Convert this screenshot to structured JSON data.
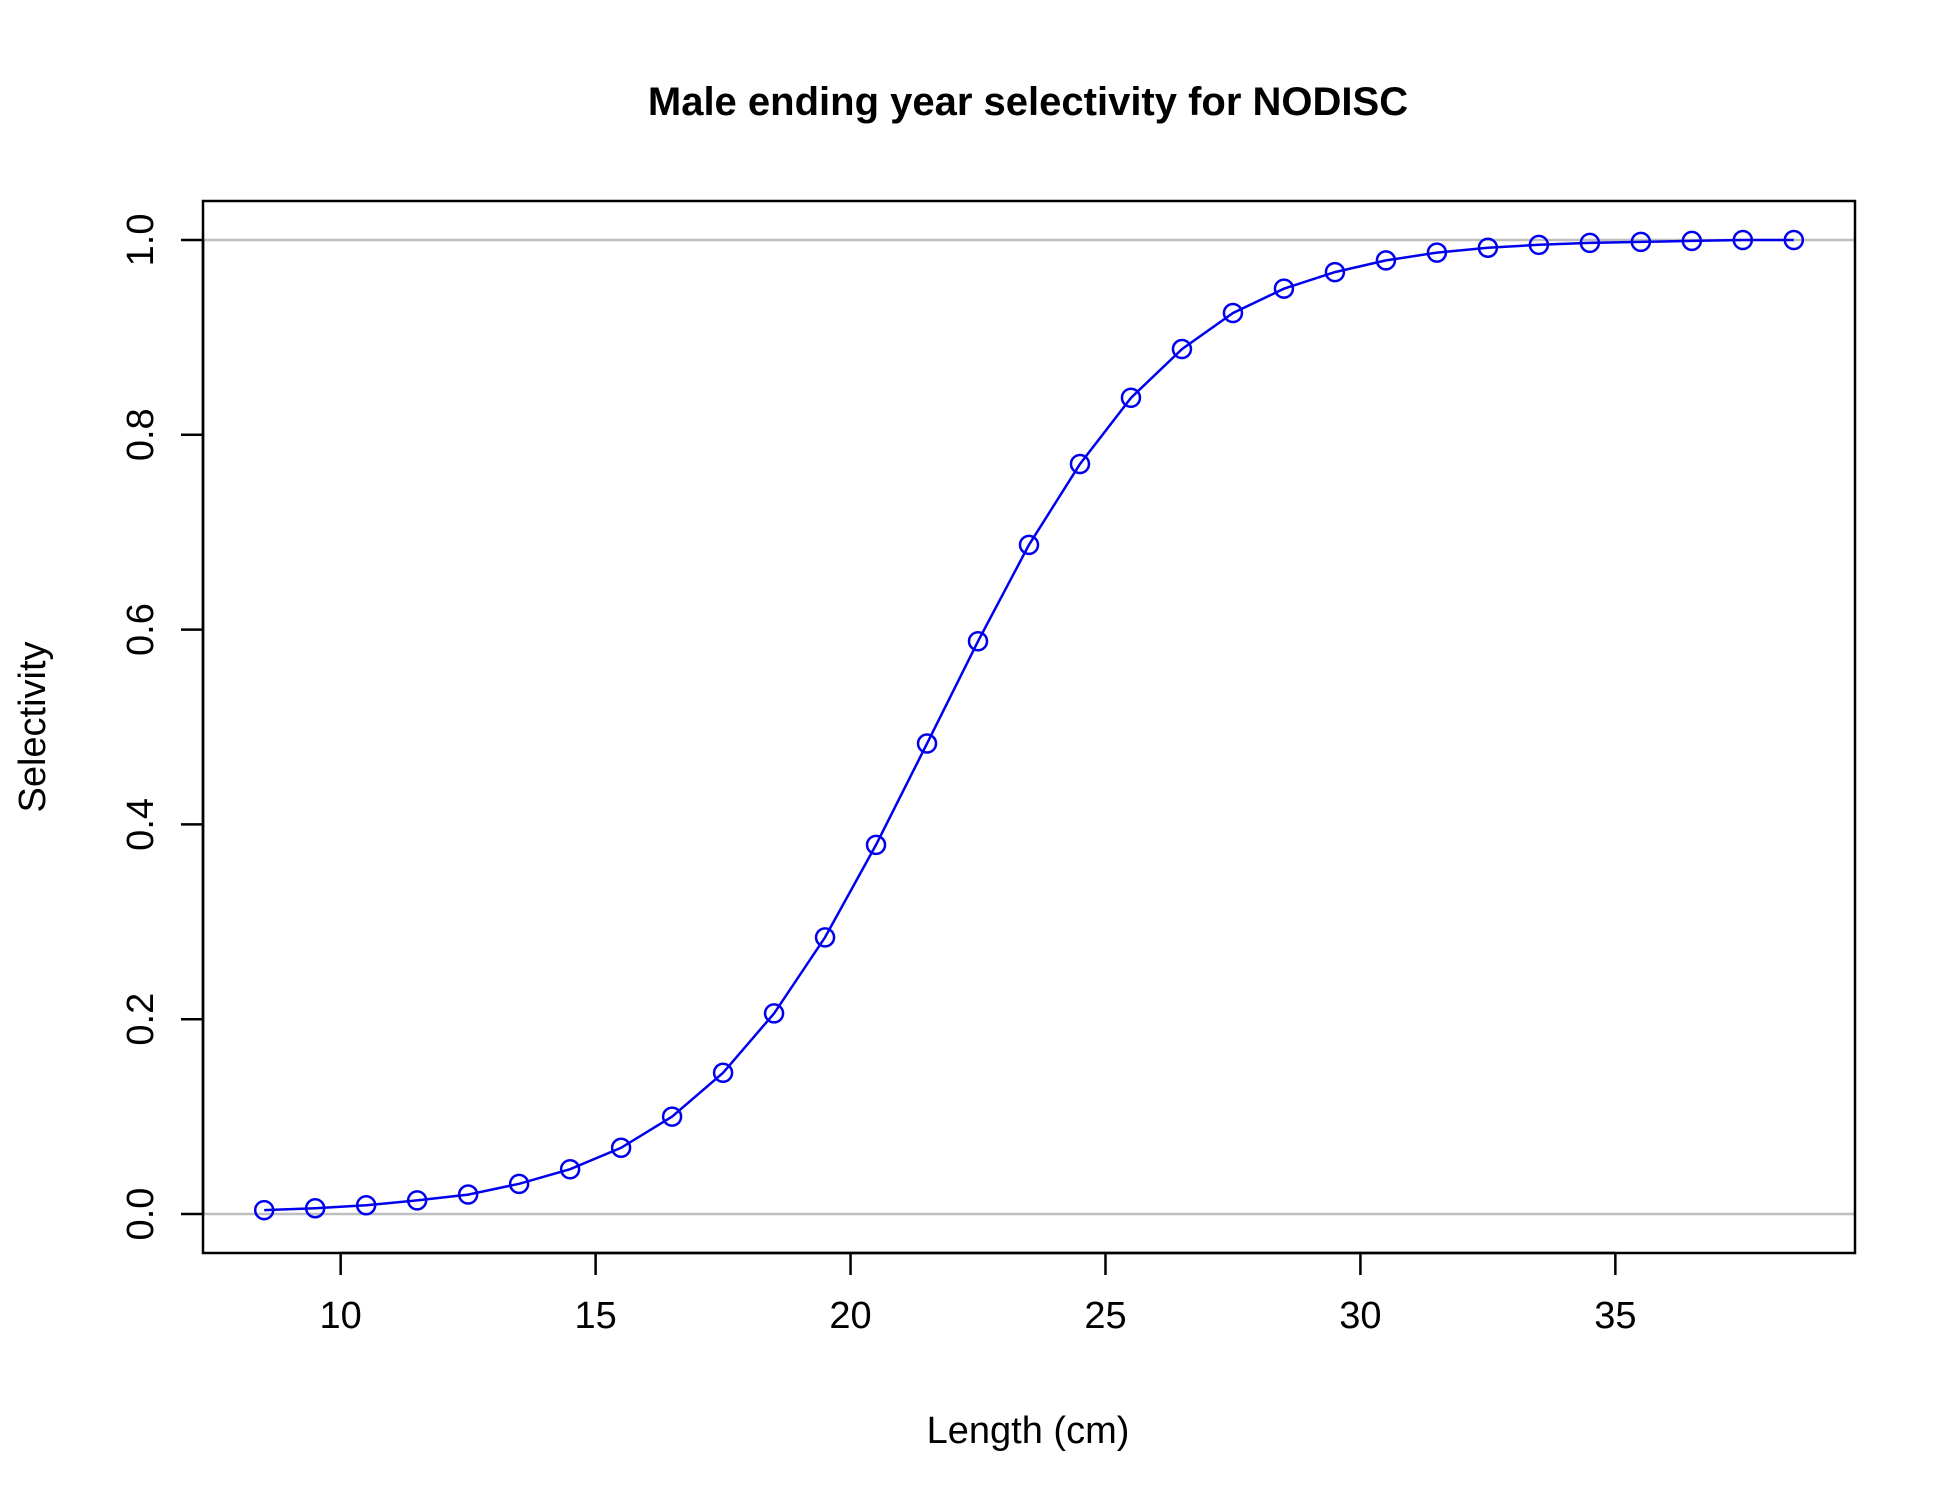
{
  "chart_data": {
    "type": "line",
    "title": "Male ending year selectivity for NODISC",
    "xlabel": "Length (cm)",
    "ylabel": "Selectivity",
    "xlim": [
      7.3,
      39.7
    ],
    "ylim": [
      -0.04,
      1.04
    ],
    "x_ticks": [
      10,
      15,
      20,
      25,
      30,
      35
    ],
    "y_ticks": [
      0.0,
      0.2,
      0.4,
      0.6,
      0.8,
      1.0
    ],
    "y_tick_labels": [
      "0.0",
      "0.2",
      "0.4",
      "0.6",
      "0.8",
      "1.0"
    ],
    "reference_lines": [
      0,
      1
    ],
    "marker": "open-circle",
    "grid": false,
    "series": [
      {
        "color": "#0000ee",
        "x": [
          8.5,
          9.5,
          10.5,
          11.5,
          12.5,
          13.5,
          14.5,
          15.5,
          16.5,
          17.5,
          18.5,
          19.5,
          20.5,
          21.5,
          22.5,
          23.5,
          24.5,
          25.5,
          26.5,
          27.5,
          28.5,
          29.5,
          30.5,
          31.5,
          32.5,
          33.5,
          34.5,
          35.5,
          36.5,
          37.5,
          38.5
        ],
        "y": [
          0.004,
          0.006,
          0.009,
          0.014,
          0.02,
          0.031,
          0.046,
          0.068,
          0.1,
          0.145,
          0.206,
          0.284,
          0.379,
          0.483,
          0.588,
          0.687,
          0.77,
          0.838,
          0.888,
          0.925,
          0.95,
          0.967,
          0.979,
          0.987,
          0.992,
          0.995,
          0.997,
          0.998,
          0.999,
          1.0,
          1.0
        ]
      }
    ]
  }
}
